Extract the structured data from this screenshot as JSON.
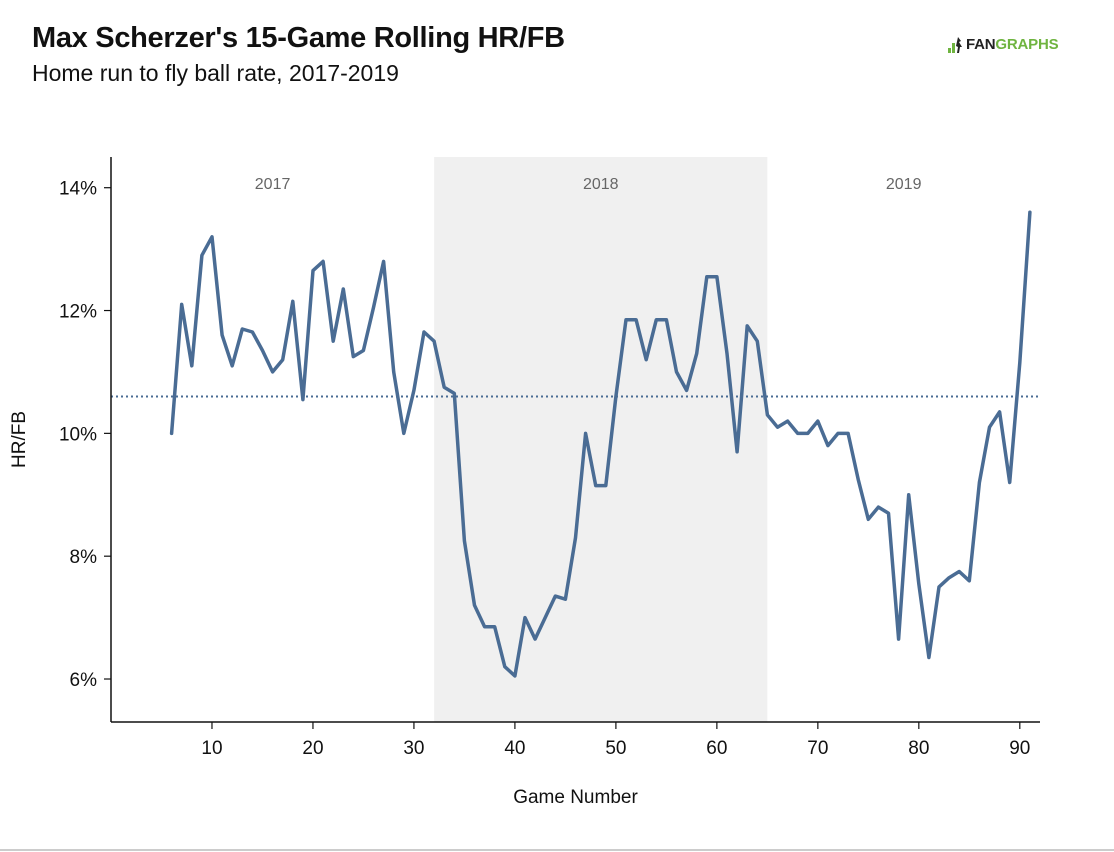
{
  "header": {
    "title": "Max Scherzer's 15-Game Rolling HR/FB",
    "subtitle": "Home run to fly ball rate, 2017-2019"
  },
  "logo": {
    "fan": "FAN",
    "graphs": "GRAPHS",
    "colors": {
      "fan": "#222222",
      "graphs": "#6fb440"
    }
  },
  "chart_data": {
    "type": "line",
    "title": "Max Scherzer's 15-Game Rolling HR/FB",
    "subtitle": "Home run to fly ball rate, 2017-2019",
    "xlabel": "Game Number",
    "ylabel": "HR/FB",
    "xlim": [
      0,
      92
    ],
    "ylim": [
      5.3,
      14.5
    ],
    "xticks": [
      10,
      20,
      30,
      40,
      50,
      60,
      70,
      80,
      90
    ],
    "xtick_labels": [
      "10",
      "20",
      "30",
      "40",
      "50",
      "60",
      "70",
      "80",
      "90"
    ],
    "yticks": [
      6,
      8,
      10,
      12,
      14
    ],
    "ytick_labels": [
      "6%",
      "8%",
      "10%",
      "12%",
      "14%"
    ],
    "reference_line": {
      "y": 10.6,
      "style": "dotted"
    },
    "seasons": [
      {
        "label": "2017",
        "x_start": 0,
        "x_end": 32,
        "shaded": false
      },
      {
        "label": "2018",
        "x_start": 32,
        "x_end": 65,
        "shaded": true
      },
      {
        "label": "2019",
        "x_start": 65,
        "x_end": 92,
        "shaded": false
      }
    ],
    "grid": false,
    "colors": {
      "line": "#4a6c94",
      "shade": "#f0f0f0",
      "reference": "#4a6c94"
    },
    "series": [
      {
        "x": [
          6,
          7,
          8,
          9,
          10,
          11,
          12,
          13,
          14,
          15,
          16,
          17,
          18,
          19,
          20,
          21,
          22,
          23,
          24,
          25,
          26,
          27,
          28,
          29,
          30,
          31,
          32,
          33,
          34,
          35,
          36,
          37,
          38,
          39,
          40,
          41,
          42,
          43,
          44,
          45,
          46,
          47,
          48,
          49,
          50,
          51,
          52,
          53,
          54,
          55,
          56,
          57,
          58,
          59,
          60,
          61,
          62,
          63,
          64,
          65,
          66,
          67,
          68,
          69,
          70,
          71,
          72,
          73,
          74,
          75,
          76,
          77,
          78,
          79,
          80,
          81,
          82,
          83,
          84,
          85,
          86,
          87,
          88,
          89,
          90,
          91
        ],
        "y": [
          10.0,
          12.1,
          11.1,
          12.9,
          13.2,
          11.6,
          11.1,
          11.7,
          11.65,
          11.35,
          11.0,
          11.2,
          12.15,
          10.55,
          12.65,
          12.8,
          11.5,
          12.35,
          11.25,
          11.35,
          12.05,
          12.8,
          11.0,
          10.0,
          10.7,
          11.65,
          11.5,
          10.75,
          10.65,
          8.25,
          7.2,
          6.85,
          6.85,
          6.2,
          6.05,
          7.0,
          6.65,
          7.0,
          7.35,
          7.3,
          8.3,
          10.0,
          9.15,
          9.15,
          10.6,
          11.85,
          11.85,
          11.2,
          11.85,
          11.85,
          11.0,
          10.7,
          11.3,
          12.55,
          12.55,
          11.3,
          9.7,
          11.75,
          11.5,
          10.3,
          10.1,
          10.2,
          10.0,
          10.0,
          10.2,
          9.8,
          10.0,
          10.0,
          9.25,
          8.6,
          8.8,
          8.7,
          6.65,
          9.0,
          7.55,
          6.35,
          7.5,
          7.65,
          7.75,
          7.6,
          9.2,
          10.1,
          10.35,
          9.2,
          11.15,
          13.6
        ]
      }
    ]
  }
}
